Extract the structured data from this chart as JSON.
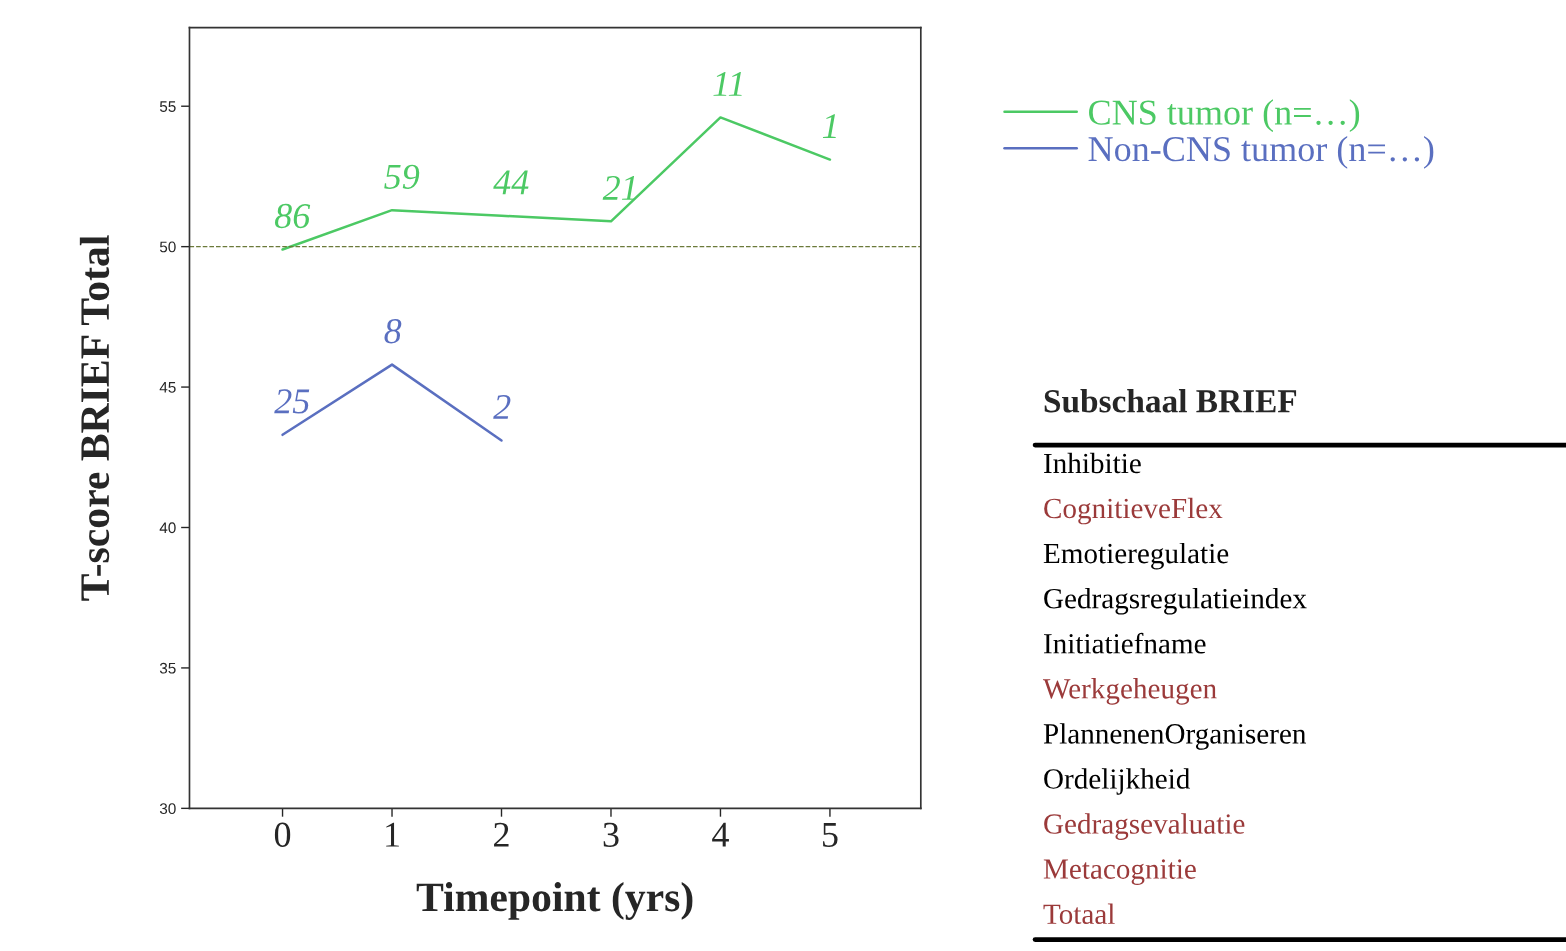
{
  "chart_data": {
    "type": "line",
    "xlabel": "Timepoint (yrs)",
    "ylabel": "T-score BRIEF Total",
    "x": [
      0,
      1,
      2,
      3,
      4,
      5
    ],
    "series": [
      {
        "name": "CNS tumor (n=…)",
        "color": "#4cc964",
        "values": [
          49.9,
          51.3,
          51.1,
          50.9,
          54.6,
          53.1
        ]
      },
      {
        "name": "Non-CNS tumor (n=…)",
        "color": "#5a6fc0",
        "values": [
          43.3,
          45.8,
          43.1,
          null,
          null,
          null
        ]
      }
    ],
    "xlim": [
      -0.85,
      5.83
    ],
    "ylim": [
      30,
      57.8
    ],
    "xticks": [
      0,
      1,
      2,
      3,
      4,
      5
    ],
    "yticks": [
      30,
      35,
      40,
      45,
      50,
      55
    ],
    "ref_lines": [
      {
        "axis": "y",
        "value": 50,
        "color": "#6b7a3a",
        "line_style": "dashed"
      }
    ],
    "legend": "top right",
    "grid": false,
    "marker": "none",
    "line_style": "solid",
    "annotations": [
      {
        "text": "86",
        "x": 0,
        "y": 49.9
      },
      {
        "text": "59",
        "x": 1,
        "y": 51.3
      },
      {
        "text": "44",
        "x": 2,
        "y": 51.1
      },
      {
        "text": "21",
        "x": 3,
        "y": 50.9
      },
      {
        "text": "11",
        "x": 4,
        "y": 54.6
      },
      {
        "text": "1",
        "x": 5,
        "y": 53.1
      },
      {
        "text": "25",
        "x": 0,
        "y": 43.3
      },
      {
        "text": "8",
        "x": 1,
        "y": 45.8
      },
      {
        "text": "2",
        "x": 2,
        "y": 43.1
      },
      "Subschaal BRIEF",
      "Inhibitie",
      "CognitieveFlex",
      "Emotieregulatie",
      "Gedragsregulatieindex",
      "Initiatiefname",
      "Werkgeheugen",
      "PlannenenOrganiseren",
      "Ordelijkheid",
      "Gedragsevaluatie",
      "Metacognitie",
      "Totaal"
    ]
  }
}
